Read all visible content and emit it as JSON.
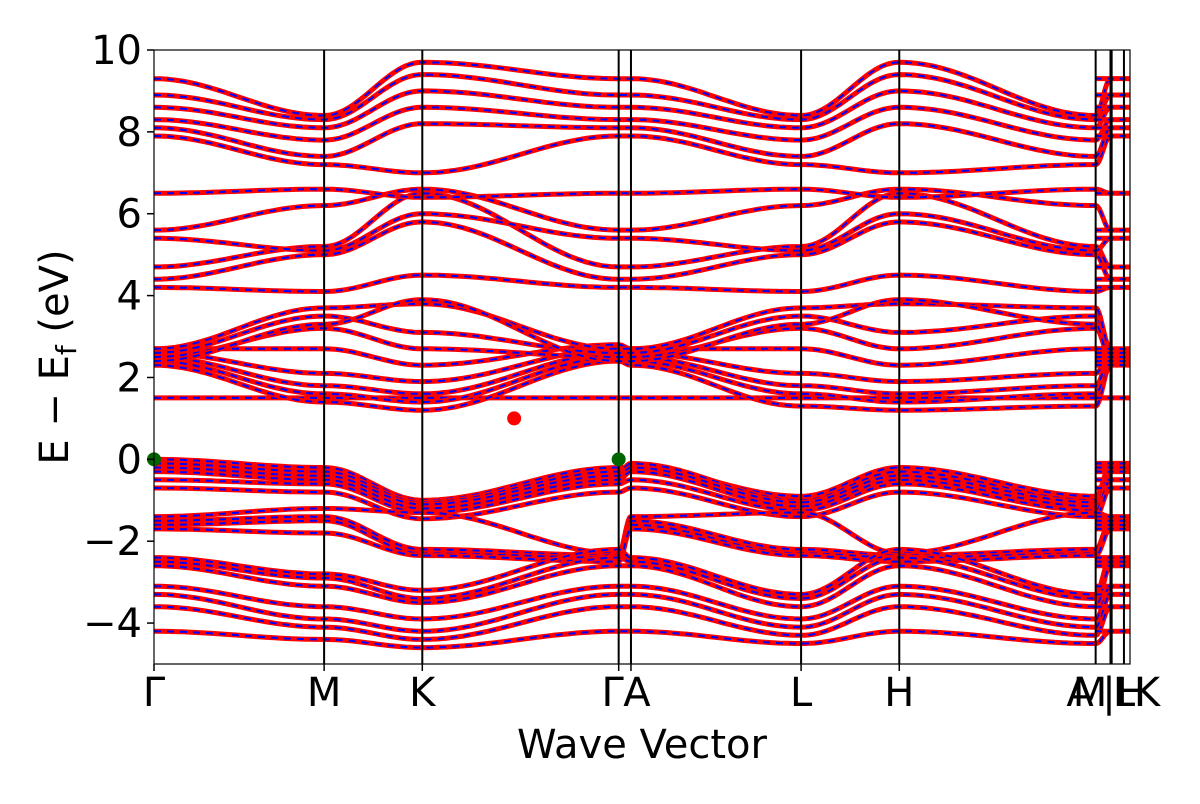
{
  "chart_data": {
    "type": "line",
    "xlabel": "Wave Vector",
    "ylabel": "E − E",
    "ylabel_sub": "f",
    "ylabel_unit": " (eV)",
    "ylim": [
      -5,
      10
    ],
    "y_ticks": [
      -4,
      -2,
      0,
      2,
      4,
      6,
      8,
      10
    ],
    "y_tick_labels": [
      "−4",
      "−2",
      "0",
      "2",
      "4",
      "6",
      "8",
      "10"
    ],
    "kpath": [
      {
        "label": "Γ",
        "x": 0.0
      },
      {
        "label": "M",
        "x": 0.1743
      },
      {
        "label": "K",
        "x": 0.2749
      },
      {
        "label": "Γ",
        "x": 0.4761
      },
      {
        "label": "A",
        "x": 0.4887
      },
      {
        "label": "L",
        "x": 0.663
      },
      {
        "label": "H",
        "x": 0.7636
      },
      {
        "label": "A",
        "x": 0.9648
      },
      {
        "label": "L",
        "x": 0.98
      },
      {
        "label": "M",
        "x": 0.9812
      },
      {
        "label": "H",
        "x": 0.9938
      },
      {
        "label": "K",
        "x": 1.0
      }
    ],
    "x_tick_labels": [
      "Γ",
      "M",
      "K",
      "Γ",
      "A",
      "L",
      "H",
      "A",
      "M",
      "|",
      "L",
      "H",
      "K"
    ],
    "series": [
      {
        "color": "#ff0000",
        "style": "solid",
        "width": "thick"
      },
      {
        "color": "#0000ff",
        "style": "dashed",
        "width": "thin"
      }
    ],
    "markers": [
      {
        "type": "VBM",
        "x": 0.0,
        "y": 0.0,
        "color": "#006400"
      },
      {
        "type": "VBM",
        "x": 0.4761,
        "y": 0.0,
        "color": "#006400"
      },
      {
        "type": "CBM",
        "x": 0.369,
        "y": 1.0,
        "color": "#ff0000"
      }
    ],
    "bands_valence": [
      [
        0.0,
        -0.2,
        -1.0,
        -0.2,
        -0.2,
        -0.9,
        -0.2,
        -0.9,
        -0.2
      ],
      [
        -0.1,
        -0.3,
        -1.05,
        -0.3,
        -0.1,
        -1.0,
        -0.3,
        -1.0,
        -0.1
      ],
      [
        -0.2,
        -0.4,
        -1.1,
        -0.4,
        -0.2,
        -1.05,
        -0.4,
        -1.05,
        -0.2
      ],
      [
        -0.3,
        -0.5,
        -1.2,
        -0.5,
        -0.3,
        -1.15,
        -0.5,
        -1.15,
        -0.3
      ],
      [
        -0.5,
        -0.6,
        -1.3,
        -0.6,
        -0.5,
        -1.25,
        -0.6,
        -1.25,
        -0.5
      ],
      [
        -0.7,
        -0.8,
        -1.45,
        -0.8,
        -0.7,
        -1.4,
        -0.8,
        -1.4,
        -0.7
      ],
      [
        -1.4,
        -1.2,
        -1.3,
        -2.3,
        -1.4,
        -1.3,
        -2.3,
        -1.3,
        -1.4
      ],
      [
        -1.5,
        -1.4,
        -2.2,
        -2.35,
        -1.5,
        -2.2,
        -2.35,
        -2.2,
        -1.5
      ],
      [
        -1.6,
        -1.5,
        -2.3,
        -2.4,
        -1.6,
        -2.3,
        -2.4,
        -2.3,
        -1.6
      ],
      [
        -1.7,
        -1.8,
        -2.35,
        -2.5,
        -1.7,
        -2.35,
        -2.5,
        -2.35,
        -1.7
      ],
      [
        -2.4,
        -2.8,
        -3.2,
        -2.2,
        -2.4,
        -3.3,
        -2.2,
        -3.3,
        -2.4
      ],
      [
        -2.5,
        -2.9,
        -3.4,
        -2.4,
        -2.5,
        -3.4,
        -2.4,
        -3.4,
        -2.5
      ],
      [
        -2.6,
        -3.1,
        -3.5,
        -2.6,
        -2.6,
        -3.6,
        -2.6,
        -3.6,
        -2.6
      ],
      [
        -3.1,
        -3.6,
        -3.9,
        -3.1,
        -3.1,
        -3.9,
        -3.1,
        -3.9,
        -3.1
      ],
      [
        -3.3,
        -3.9,
        -4.2,
        -3.3,
        -3.3,
        -4.1,
        -3.3,
        -4.1,
        -3.3
      ],
      [
        -3.6,
        -4.1,
        -4.4,
        -3.6,
        -3.6,
        -4.3,
        -3.6,
        -4.3,
        -3.6
      ],
      [
        -4.2,
        -4.4,
        -4.6,
        -4.2,
        -4.2,
        -4.5,
        -4.2,
        -4.5,
        -4.2
      ]
    ],
    "bands_conduction": [
      [
        1.5,
        1.5,
        1.5,
        1.5,
        1.5,
        1.5,
        1.5,
        1.5,
        1.5
      ],
      [
        2.3,
        1.4,
        1.2,
        2.4,
        2.3,
        1.3,
        1.2,
        1.3,
        2.3
      ],
      [
        2.4,
        1.6,
        1.4,
        2.5,
        2.4,
        1.6,
        1.4,
        1.6,
        2.4
      ],
      [
        2.5,
        1.8,
        1.6,
        2.6,
        2.5,
        1.8,
        1.6,
        1.8,
        2.5
      ],
      [
        2.6,
        2.1,
        1.9,
        2.7,
        2.6,
        2.1,
        1.9,
        2.1,
        2.6
      ],
      [
        2.7,
        2.7,
        2.3,
        2.8,
        2.7,
        2.7,
        2.3,
        2.7,
        2.7
      ],
      [
        2.5,
        3.2,
        2.7,
        2.5,
        2.5,
        3.2,
        2.7,
        3.2,
        2.5
      ],
      [
        2.6,
        3.5,
        3.1,
        2.6,
        2.6,
        3.5,
        3.1,
        3.5,
        2.6
      ],
      [
        2.7,
        3.7,
        3.8,
        2.7,
        2.7,
        3.7,
        3.8,
        3.7,
        2.7
      ],
      [
        2.4,
        3.3,
        3.9,
        2.4,
        2.4,
        3.3,
        3.9,
        3.3,
        2.4
      ],
      [
        4.2,
        4.1,
        4.5,
        4.2,
        4.2,
        4.1,
        4.5,
        4.1,
        4.2
      ],
      [
        4.4,
        5.0,
        5.8,
        4.4,
        4.4,
        5.0,
        5.8,
        5.0,
        4.4
      ],
      [
        4.7,
        5.2,
        6.5,
        4.7,
        4.7,
        5.2,
        6.5,
        5.2,
        4.7
      ],
      [
        5.4,
        5.1,
        6.0,
        5.4,
        5.4,
        5.1,
        6.0,
        5.1,
        5.4
      ],
      [
        5.6,
        6.2,
        6.6,
        5.6,
        5.6,
        6.2,
        6.6,
        6.2,
        5.6
      ],
      [
        6.5,
        6.6,
        6.4,
        6.5,
        6.5,
        6.6,
        6.4,
        6.6,
        6.5
      ],
      [
        7.9,
        7.2,
        7.0,
        7.9,
        7.9,
        7.2,
        7.0,
        7.2,
        7.9
      ],
      [
        8.1,
        7.4,
        8.2,
        8.1,
        8.1,
        7.4,
        8.2,
        7.4,
        8.1
      ],
      [
        8.3,
        7.8,
        8.6,
        8.3,
        8.3,
        7.8,
        8.6,
        7.8,
        8.3
      ],
      [
        8.6,
        8.1,
        9.0,
        8.6,
        8.6,
        8.1,
        9.0,
        8.1,
        8.6
      ],
      [
        8.9,
        8.3,
        9.4,
        8.9,
        8.9,
        8.3,
        9.4,
        8.3,
        8.9
      ],
      [
        9.3,
        8.4,
        9.7,
        9.3,
        9.3,
        8.4,
        9.7,
        8.4,
        9.3
      ]
    ]
  }
}
